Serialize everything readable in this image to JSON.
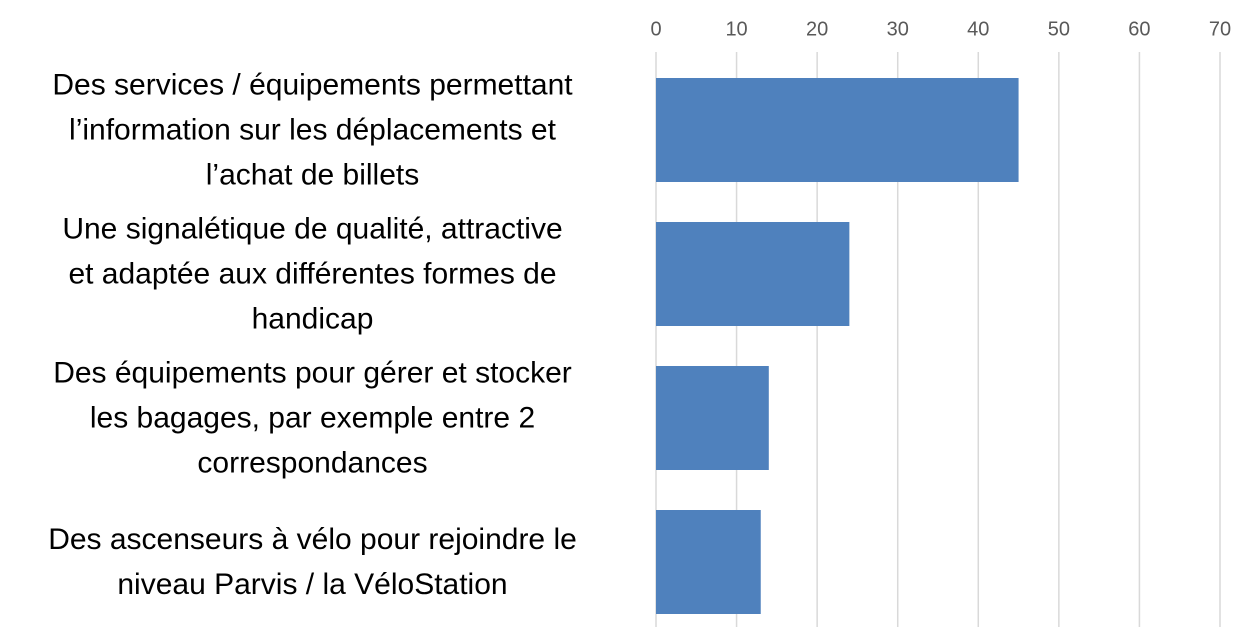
{
  "chart_data": {
    "type": "barh",
    "categories": [
      "Des services / équipements permettant\nl’information sur les déplacements et\nl’achat de billets",
      "Une signalétique de qualité, attractive\net adaptée aux différentes formes de\nhandicap",
      "Des équipements pour gérer et stocker\nles bagages, par exemple entre 2\ncorrespondances",
      "Des ascenseurs à vélo pour rejoindre le\nniveau Parvis / la VéloStation"
    ],
    "values": [
      45,
      24,
      14,
      13
    ],
    "color": "#4f81bd",
    "xlim": [
      0,
      70
    ],
    "xticks": [
      0,
      10,
      20,
      30,
      40,
      50,
      60,
      70
    ],
    "grid": true
  }
}
